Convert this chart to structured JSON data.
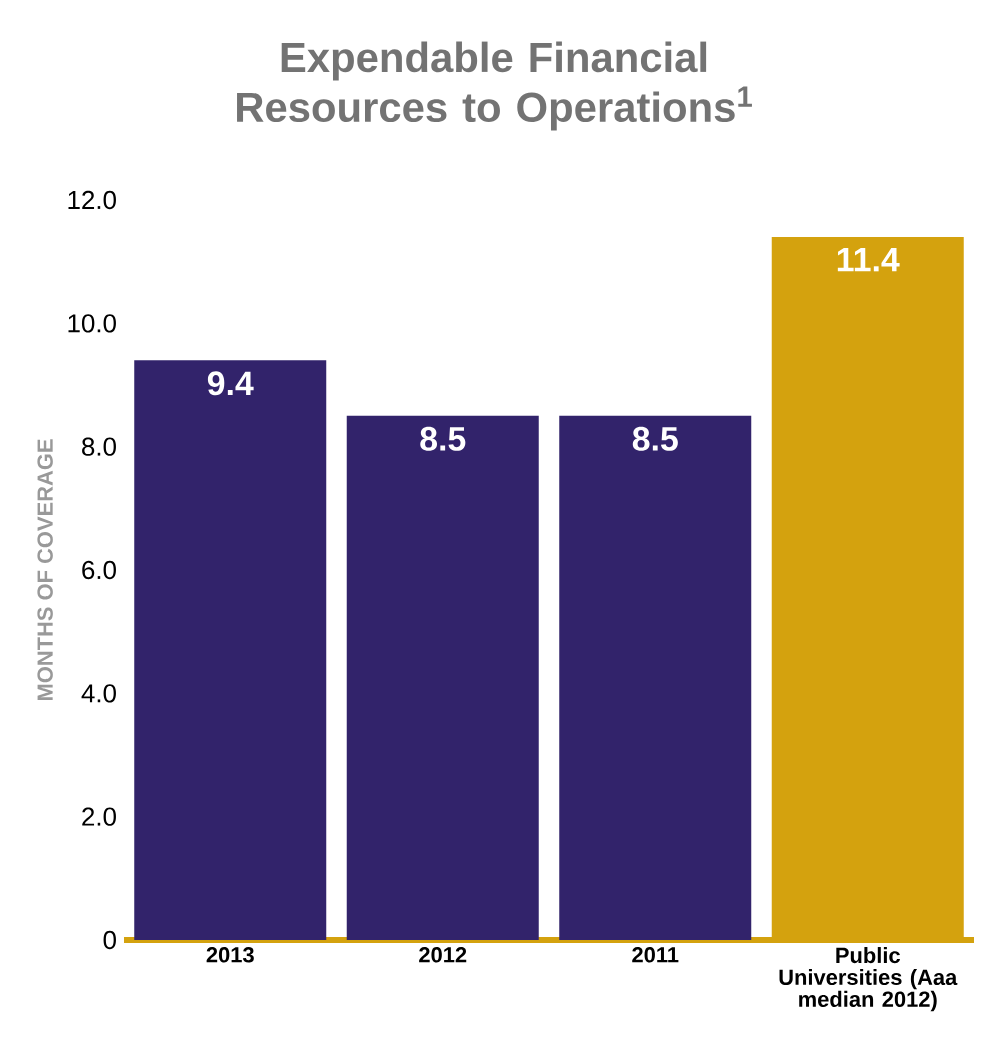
{
  "chart_data": {
    "type": "bar",
    "title": "Expendable Financial Resources to Operations$^{1}$",
    "ylabel": "MONTHS OF COVERAGE",
    "categories": [
      "2013",
      "2012",
      "2011",
      "Public Universities (Aaa median 2012)"
    ],
    "values": [
      9.4,
      8.5,
      8.5,
      11.4
    ],
    "colors": [
      "#32236b",
      "#32236b",
      "#32236b",
      "#d4a20e"
    ],
    "ylim": [
      0,
      12
    ],
    "yticks": [
      0,
      {
        "value": 2,
        "label": "2.0"
      },
      {
        "value": 4,
        "label": "4.0"
      },
      {
        "value": 6,
        "label": "6.0"
      },
      {
        "value": 8,
        "label": "8.0"
      },
      {
        "value": 10,
        "label": "10.0"
      },
      {
        "value": 12,
        "label": "12.0"
      }
    ],
    "data_labels": true,
    "grid": false
  }
}
